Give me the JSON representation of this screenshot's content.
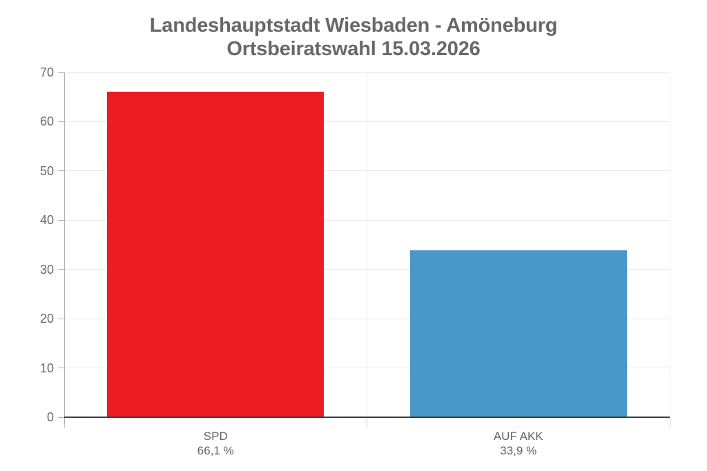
{
  "chart_data": {
    "type": "bar",
    "title": "Landeshauptstadt Wiesbaden - Amöneburg",
    "subtitle": "Ortsbeiratswahl 15.03.2026",
    "categories": [
      "SPD",
      "AUF AKK"
    ],
    "values": [
      66.1,
      33.9
    ],
    "value_labels": [
      "66,1 %",
      "33,9 %"
    ],
    "bar_colors": [
      "#ED1C24",
      "#4A98C8"
    ],
    "xlabel": "",
    "ylabel": "",
    "ylim": [
      0,
      70
    ],
    "yticks": [
      0,
      10,
      20,
      30,
      40,
      50,
      60,
      70
    ],
    "grid": true,
    "legend": "none"
  },
  "colors": {
    "title_text": "#686868",
    "tick_text": "#6a6a6a",
    "axis_line": "#3c3c3c",
    "y_axis_line": "#b0b0b0",
    "gridline": "#e8e8e8",
    "background": "#ffffff"
  }
}
